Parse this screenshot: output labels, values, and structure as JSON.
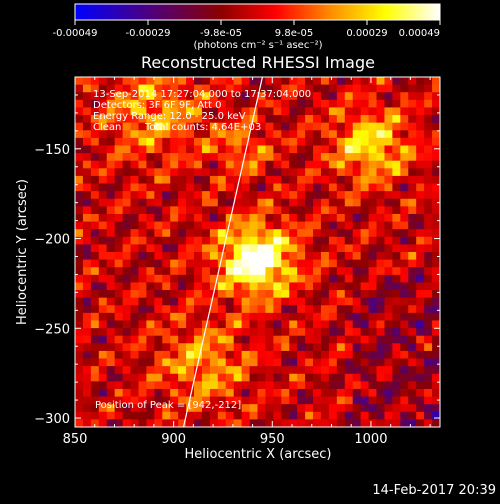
{
  "chart_data": {
    "type": "heatmap",
    "title": "Reconstructed RHESSI Image",
    "xlabel": "Heliocentric X (arcsec)",
    "ylabel": "Heliocentric Y (arcsec)",
    "xlim": [
      850,
      1035
    ],
    "ylim": [
      -305,
      -110
    ],
    "x_ticks": [
      850,
      900,
      950,
      1000
    ],
    "y_ticks": [
      -150,
      -200,
      -250,
      -300
    ],
    "colorbar": {
      "unit_label": "(photons cm⁻² s⁻¹ asec⁻²)",
      "range": [
        -0.00049,
        0.00049
      ],
      "ticks": [
        "-0.00049",
        "-0.00029",
        "-9.8e-05",
        "9.8e-05",
        "0.00029",
        "0.00049"
      ],
      "colors": [
        "#0000ff",
        "#4b0082",
        "#8b0000",
        "#ff0000",
        "#ff8c00",
        "#ffff00",
        "#ffffff"
      ]
    },
    "annotations": [
      "13-Sep-2014 17:27:04.000 to 17:37:04.000",
      "Detectors: 3F 6F 9F, Att 0",
      "Energy Range: 12.0 - 25.0 keV",
      "Clean",
      "Total counts: 4.64E+03"
    ],
    "peak": {
      "label": "Position of Peak = [942,-212]",
      "x": 942,
      "y": -212
    },
    "limb_line": [
      [
        905,
        -305
      ],
      [
        945,
        -110
      ]
    ]
  },
  "footer": {
    "timestamp": "14-Feb-2017 20:39"
  }
}
